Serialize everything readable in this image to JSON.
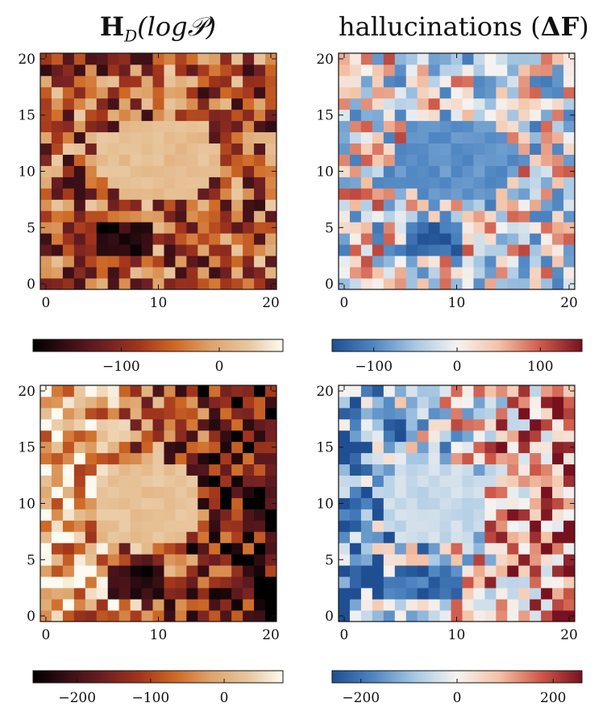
{
  "titles": {
    "left": {
      "main": "H",
      "sub": "D",
      "arg": "(log𝒫)"
    },
    "right": {
      "text": "hallucinations (",
      "delta": "ΔF",
      "close": ")"
    }
  },
  "colors": {
    "left_colormap": [
      "#000000",
      "#3a0f16",
      "#6e1f22",
      "#a3361c",
      "#cf6a26",
      "#dea46b",
      "#e8c59d",
      "#fdfaf0"
    ],
    "right_colormap": [
      "#1f4f92",
      "#4f86c2",
      "#a7c8e3",
      "#f5f3f1",
      "#f4c2a6",
      "#cf5a4a",
      "#78111f"
    ]
  },
  "chart_data": [
    {
      "id": "panel-top-left",
      "type": "heatmap",
      "x": {
        "ticks": [
          0,
          10,
          20
        ],
        "range": [
          -0.5,
          20.5
        ]
      },
      "y": {
        "ticks": [
          0,
          5,
          10,
          15,
          20
        ],
        "range": [
          -0.5,
          20.5
        ]
      },
      "grid": false,
      "colorbar": {
        "range": [
          -190,
          65
        ],
        "ticks": [
          -100,
          0
        ],
        "colormap": "left"
      },
      "pattern": {
        "center": [
          10,
          11
        ],
        "radii": [
          5.5,
          4
        ],
        "plateau": 20,
        "low_patch": [
          7,
          4
        ],
        "skew": 0,
        "seed": 11
      }
    },
    {
      "id": "panel-top-right",
      "type": "heatmap",
      "x": {
        "ticks": [
          0,
          10,
          20
        ],
        "range": [
          -0.5,
          20.5
        ]
      },
      "y": {
        "ticks": [
          0,
          5,
          10,
          15,
          20
        ],
        "range": [
          -0.5,
          20.5
        ]
      },
      "grid": false,
      "colorbar": {
        "range": [
          -150,
          150
        ],
        "ticks": [
          -100,
          0,
          100
        ],
        "colormap": "right"
      },
      "pattern": {
        "center": [
          10,
          11
        ],
        "radii": [
          5.5,
          4
        ],
        "plateau": -90,
        "low_patch": [
          8,
          4
        ],
        "skew": 0,
        "seed": 23
      }
    },
    {
      "id": "panel-bottom-left",
      "type": "heatmap",
      "x": {
        "ticks": [
          0,
          10,
          20
        ],
        "range": [
          -0.5,
          20.5
        ]
      },
      "y": {
        "ticks": [
          0,
          5,
          10,
          15,
          20
        ],
        "range": [
          -0.5,
          20.5
        ]
      },
      "grid": false,
      "colorbar": {
        "range": [
          -260,
          80
        ],
        "ticks": [
          -200,
          -100,
          0
        ],
        "colormap": "left"
      },
      "pattern": {
        "center": [
          9,
          10
        ],
        "radii": [
          5,
          4
        ],
        "plateau": 25,
        "low_patch": [
          8,
          3
        ],
        "skew": -1,
        "seed": 37
      }
    },
    {
      "id": "panel-bottom-right",
      "type": "heatmap",
      "x": {
        "ticks": [
          0,
          10,
          20
        ],
        "range": [
          -0.5,
          20.5
        ]
      },
      "y": {
        "ticks": [
          0,
          5,
          10,
          15,
          20
        ],
        "range": [
          -0.5,
          20.5
        ]
      },
      "grid": false,
      "colorbar": {
        "range": [
          -260,
          260
        ],
        "ticks": [
          -200,
          0,
          200
        ],
        "colormap": "right"
      },
      "pattern": {
        "center": [
          8,
          10
        ],
        "radii": [
          5,
          4
        ],
        "plateau": -50,
        "low_patch": [
          8,
          3
        ],
        "skew": 1,
        "seed": 51
      }
    }
  ]
}
